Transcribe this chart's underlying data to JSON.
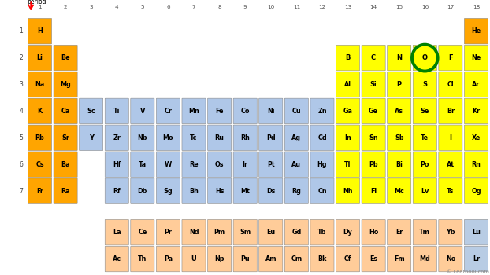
{
  "background_color": "#ffffff",
  "colors": {
    "orange": "#FFA500",
    "yellow": "#FFFF00",
    "blue": "#AFC7E8",
    "light_orange": "#FFCC99",
    "light_blue": "#B8CCE4"
  },
  "elements": [
    {
      "symbol": "H",
      "group": 1,
      "row": 1,
      "color": "orange"
    },
    {
      "symbol": "He",
      "group": 18,
      "row": 1,
      "color": "orange"
    },
    {
      "symbol": "Li",
      "group": 1,
      "row": 2,
      "color": "orange"
    },
    {
      "symbol": "Be",
      "group": 2,
      "row": 2,
      "color": "orange"
    },
    {
      "symbol": "B",
      "group": 13,
      "row": 2,
      "color": "yellow"
    },
    {
      "symbol": "C",
      "group": 14,
      "row": 2,
      "color": "yellow"
    },
    {
      "symbol": "N",
      "group": 15,
      "row": 2,
      "color": "yellow"
    },
    {
      "symbol": "O",
      "group": 16,
      "row": 2,
      "color": "yellow",
      "circle": true
    },
    {
      "symbol": "F",
      "group": 17,
      "row": 2,
      "color": "yellow"
    },
    {
      "symbol": "Ne",
      "group": 18,
      "row": 2,
      "color": "yellow"
    },
    {
      "symbol": "Na",
      "group": 1,
      "row": 3,
      "color": "orange"
    },
    {
      "symbol": "Mg",
      "group": 2,
      "row": 3,
      "color": "orange"
    },
    {
      "symbol": "Al",
      "group": 13,
      "row": 3,
      "color": "yellow"
    },
    {
      "symbol": "Si",
      "group": 14,
      "row": 3,
      "color": "yellow"
    },
    {
      "symbol": "P",
      "group": 15,
      "row": 3,
      "color": "yellow"
    },
    {
      "symbol": "S",
      "group": 16,
      "row": 3,
      "color": "yellow"
    },
    {
      "symbol": "Cl",
      "group": 17,
      "row": 3,
      "color": "yellow"
    },
    {
      "symbol": "Ar",
      "group": 18,
      "row": 3,
      "color": "yellow"
    },
    {
      "symbol": "K",
      "group": 1,
      "row": 4,
      "color": "orange"
    },
    {
      "symbol": "Ca",
      "group": 2,
      "row": 4,
      "color": "orange"
    },
    {
      "symbol": "Sc",
      "group": 3,
      "row": 4,
      "color": "blue"
    },
    {
      "symbol": "Ti",
      "group": 4,
      "row": 4,
      "color": "blue"
    },
    {
      "symbol": "V",
      "group": 5,
      "row": 4,
      "color": "blue"
    },
    {
      "symbol": "Cr",
      "group": 6,
      "row": 4,
      "color": "blue"
    },
    {
      "symbol": "Mn",
      "group": 7,
      "row": 4,
      "color": "blue"
    },
    {
      "symbol": "Fe",
      "group": 8,
      "row": 4,
      "color": "blue"
    },
    {
      "symbol": "Co",
      "group": 9,
      "row": 4,
      "color": "blue"
    },
    {
      "symbol": "Ni",
      "group": 10,
      "row": 4,
      "color": "blue"
    },
    {
      "symbol": "Cu",
      "group": 11,
      "row": 4,
      "color": "blue"
    },
    {
      "symbol": "Zn",
      "group": 12,
      "row": 4,
      "color": "blue"
    },
    {
      "symbol": "Ga",
      "group": 13,
      "row": 4,
      "color": "yellow"
    },
    {
      "symbol": "Ge",
      "group": 14,
      "row": 4,
      "color": "yellow"
    },
    {
      "symbol": "As",
      "group": 15,
      "row": 4,
      "color": "yellow"
    },
    {
      "symbol": "Se",
      "group": 16,
      "row": 4,
      "color": "yellow"
    },
    {
      "symbol": "Br",
      "group": 17,
      "row": 4,
      "color": "yellow"
    },
    {
      "symbol": "Kr",
      "group": 18,
      "row": 4,
      "color": "yellow"
    },
    {
      "symbol": "Rb",
      "group": 1,
      "row": 5,
      "color": "orange"
    },
    {
      "symbol": "Sr",
      "group": 2,
      "row": 5,
      "color": "orange"
    },
    {
      "symbol": "Y",
      "group": 3,
      "row": 5,
      "color": "blue"
    },
    {
      "symbol": "Zr",
      "group": 4,
      "row": 5,
      "color": "blue"
    },
    {
      "symbol": "Nb",
      "group": 5,
      "row": 5,
      "color": "blue"
    },
    {
      "symbol": "Mo",
      "group": 6,
      "row": 5,
      "color": "blue"
    },
    {
      "symbol": "Tc",
      "group": 7,
      "row": 5,
      "color": "blue"
    },
    {
      "symbol": "Ru",
      "group": 8,
      "row": 5,
      "color": "blue"
    },
    {
      "symbol": "Rh",
      "group": 9,
      "row": 5,
      "color": "blue"
    },
    {
      "symbol": "Pd",
      "group": 10,
      "row": 5,
      "color": "blue"
    },
    {
      "symbol": "Ag",
      "group": 11,
      "row": 5,
      "color": "blue"
    },
    {
      "symbol": "Cd",
      "group": 12,
      "row": 5,
      "color": "blue"
    },
    {
      "symbol": "In",
      "group": 13,
      "row": 5,
      "color": "yellow"
    },
    {
      "symbol": "Sn",
      "group": 14,
      "row": 5,
      "color": "yellow"
    },
    {
      "symbol": "Sb",
      "group": 15,
      "row": 5,
      "color": "yellow"
    },
    {
      "symbol": "Te",
      "group": 16,
      "row": 5,
      "color": "yellow"
    },
    {
      "symbol": "I",
      "group": 17,
      "row": 5,
      "color": "yellow"
    },
    {
      "symbol": "Xe",
      "group": 18,
      "row": 5,
      "color": "yellow"
    },
    {
      "symbol": "Cs",
      "group": 1,
      "row": 6,
      "color": "orange"
    },
    {
      "symbol": "Ba",
      "group": 2,
      "row": 6,
      "color": "orange"
    },
    {
      "symbol": "Hf",
      "group": 4,
      "row": 6,
      "color": "blue"
    },
    {
      "symbol": "Ta",
      "group": 5,
      "row": 6,
      "color": "blue"
    },
    {
      "symbol": "W",
      "group": 6,
      "row": 6,
      "color": "blue"
    },
    {
      "symbol": "Re",
      "group": 7,
      "row": 6,
      "color": "blue"
    },
    {
      "symbol": "Os",
      "group": 8,
      "row": 6,
      "color": "blue"
    },
    {
      "symbol": "Ir",
      "group": 9,
      "row": 6,
      "color": "blue"
    },
    {
      "symbol": "Pt",
      "group": 10,
      "row": 6,
      "color": "blue"
    },
    {
      "symbol": "Au",
      "group": 11,
      "row": 6,
      "color": "blue"
    },
    {
      "symbol": "Hg",
      "group": 12,
      "row": 6,
      "color": "blue"
    },
    {
      "symbol": "Tl",
      "group": 13,
      "row": 6,
      "color": "yellow"
    },
    {
      "symbol": "Pb",
      "group": 14,
      "row": 6,
      "color": "yellow"
    },
    {
      "symbol": "Bi",
      "group": 15,
      "row": 6,
      "color": "yellow"
    },
    {
      "symbol": "Po",
      "group": 16,
      "row": 6,
      "color": "yellow"
    },
    {
      "symbol": "At",
      "group": 17,
      "row": 6,
      "color": "yellow"
    },
    {
      "symbol": "Rn",
      "group": 18,
      "row": 6,
      "color": "yellow"
    },
    {
      "symbol": "Fr",
      "group": 1,
      "row": 7,
      "color": "orange"
    },
    {
      "symbol": "Ra",
      "group": 2,
      "row": 7,
      "color": "orange"
    },
    {
      "symbol": "Rf",
      "group": 4,
      "row": 7,
      "color": "blue"
    },
    {
      "symbol": "Db",
      "group": 5,
      "row": 7,
      "color": "blue"
    },
    {
      "symbol": "Sg",
      "group": 6,
      "row": 7,
      "color": "blue"
    },
    {
      "symbol": "Bh",
      "group": 7,
      "row": 7,
      "color": "blue"
    },
    {
      "symbol": "Hs",
      "group": 8,
      "row": 7,
      "color": "blue"
    },
    {
      "symbol": "Mt",
      "group": 9,
      "row": 7,
      "color": "blue"
    },
    {
      "symbol": "Ds",
      "group": 10,
      "row": 7,
      "color": "blue"
    },
    {
      "symbol": "Rg",
      "group": 11,
      "row": 7,
      "color": "blue"
    },
    {
      "symbol": "Cn",
      "group": 12,
      "row": 7,
      "color": "blue"
    },
    {
      "symbol": "Nh",
      "group": 13,
      "row": 7,
      "color": "yellow"
    },
    {
      "symbol": "Fl",
      "group": 14,
      "row": 7,
      "color": "yellow"
    },
    {
      "symbol": "Mc",
      "group": 15,
      "row": 7,
      "color": "yellow"
    },
    {
      "symbol": "Lv",
      "group": 16,
      "row": 7,
      "color": "yellow"
    },
    {
      "symbol": "Ts",
      "group": 17,
      "row": 7,
      "color": "yellow"
    },
    {
      "symbol": "Og",
      "group": 18,
      "row": 7,
      "color": "yellow"
    },
    {
      "symbol": "La",
      "group": 4,
      "row": 8,
      "color": "light_orange"
    },
    {
      "symbol": "Ce",
      "group": 5,
      "row": 8,
      "color": "light_orange"
    },
    {
      "symbol": "Pr",
      "group": 6,
      "row": 8,
      "color": "light_orange"
    },
    {
      "symbol": "Nd",
      "group": 7,
      "row": 8,
      "color": "light_orange"
    },
    {
      "symbol": "Pm",
      "group": 8,
      "row": 8,
      "color": "light_orange"
    },
    {
      "symbol": "Sm",
      "group": 9,
      "row": 8,
      "color": "light_orange"
    },
    {
      "symbol": "Eu",
      "group": 10,
      "row": 8,
      "color": "light_orange"
    },
    {
      "symbol": "Gd",
      "group": 11,
      "row": 8,
      "color": "light_orange"
    },
    {
      "symbol": "Tb",
      "group": 12,
      "row": 8,
      "color": "light_orange"
    },
    {
      "symbol": "Dy",
      "group": 13,
      "row": 8,
      "color": "light_orange"
    },
    {
      "symbol": "Ho",
      "group": 14,
      "row": 8,
      "color": "light_orange"
    },
    {
      "symbol": "Er",
      "group": 15,
      "row": 8,
      "color": "light_orange"
    },
    {
      "symbol": "Tm",
      "group": 16,
      "row": 8,
      "color": "light_orange"
    },
    {
      "symbol": "Yb",
      "group": 17,
      "row": 8,
      "color": "light_orange"
    },
    {
      "symbol": "Lu",
      "group": 18,
      "row": 8,
      "color": "light_blue"
    },
    {
      "symbol": "Ac",
      "group": 4,
      "row": 9,
      "color": "light_orange"
    },
    {
      "symbol": "Th",
      "group": 5,
      "row": 9,
      "color": "light_orange"
    },
    {
      "symbol": "Pa",
      "group": 6,
      "row": 9,
      "color": "light_orange"
    },
    {
      "symbol": "U",
      "group": 7,
      "row": 9,
      "color": "light_orange"
    },
    {
      "symbol": "Np",
      "group": 8,
      "row": 9,
      "color": "light_orange"
    },
    {
      "symbol": "Pu",
      "group": 9,
      "row": 9,
      "color": "light_orange"
    },
    {
      "symbol": "Am",
      "group": 10,
      "row": 9,
      "color": "light_orange"
    },
    {
      "symbol": "Cm",
      "group": 11,
      "row": 9,
      "color": "light_orange"
    },
    {
      "symbol": "Bk",
      "group": 12,
      "row": 9,
      "color": "light_orange"
    },
    {
      "symbol": "Cf",
      "group": 13,
      "row": 9,
      "color": "light_orange"
    },
    {
      "symbol": "Es",
      "group": 14,
      "row": 9,
      "color": "light_orange"
    },
    {
      "symbol": "Fm",
      "group": 15,
      "row": 9,
      "color": "light_orange"
    },
    {
      "symbol": "Md",
      "group": 16,
      "row": 9,
      "color": "light_orange"
    },
    {
      "symbol": "No",
      "group": 17,
      "row": 9,
      "color": "light_orange"
    },
    {
      "symbol": "Lr",
      "group": 18,
      "row": 9,
      "color": "light_blue"
    }
  ],
  "circle_element": {
    "symbol": "O",
    "group": 16,
    "row": 2
  },
  "watermark": "© Learnool.com"
}
